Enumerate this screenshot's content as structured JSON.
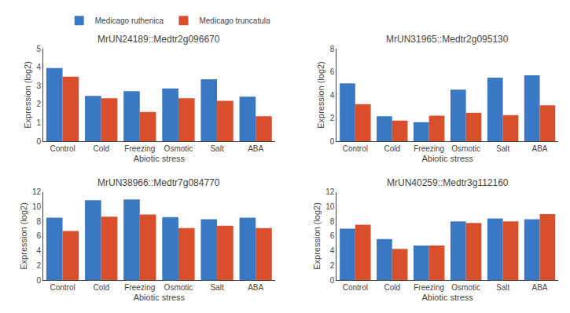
{
  "chart_data": [
    {
      "type": "bar",
      "title": "MrUN24189::Medtr2g096670",
      "xlabel": "Abiotic stress",
      "ylabel": "Expression (log2)",
      "categories": [
        "Control",
        "Cold",
        "Freezing",
        "Osmotic",
        "Salt",
        "ABA"
      ],
      "series": [
        {
          "name": "Medicago ruthenica",
          "color": "#3B78C3",
          "values": [
            3.95,
            2.45,
            2.7,
            2.85,
            3.35,
            2.4
          ]
        },
        {
          "name": "Medicago truncatula",
          "color": "#D94F2B",
          "values": [
            3.48,
            2.32,
            1.58,
            2.32,
            2.18,
            1.35
          ]
        }
      ],
      "ylim": [
        0,
        5
      ],
      "yticks": [
        0,
        1,
        2,
        3,
        4,
        5
      ],
      "grid": false,
      "legend": "upper right"
    },
    {
      "type": "bar",
      "title": "MrUN31965::Medtr2g095130",
      "xlabel": "Abiotic stress",
      "ylabel": "Expression (log2)",
      "categories": [
        "Control",
        "Cold",
        "Freezing",
        "Osmotic",
        "Salt",
        "ABA"
      ],
      "series": [
        {
          "name": "Medicago ruthenica",
          "color": "#3B78C3",
          "values": [
            5.0,
            2.15,
            1.65,
            4.45,
            5.5,
            5.7
          ]
        },
        {
          "name": "Medicago truncatula",
          "color": "#D94F2B",
          "values": [
            3.2,
            1.78,
            2.2,
            2.45,
            2.25,
            3.1
          ]
        }
      ],
      "ylim": [
        0,
        8
      ],
      "yticks": [
        0,
        2,
        4,
        6,
        8
      ],
      "grid": false
    },
    {
      "type": "bar",
      "title": "MrUN38966::Medtr7g084770",
      "xlabel": "Abiotic stress",
      "ylabel": "Expression (log2)",
      "categories": [
        "Control",
        "Cold",
        "Freezing",
        "Osmotic",
        "Salt",
        "ABA"
      ],
      "series": [
        {
          "name": "Medicago ruthenica",
          "color": "#3B78C3",
          "values": [
            8.5,
            10.9,
            11.0,
            8.6,
            8.3,
            8.5
          ]
        },
        {
          "name": "Medicago truncatula",
          "color": "#D94F2B",
          "values": [
            6.7,
            8.65,
            8.95,
            7.1,
            7.4,
            7.1
          ]
        }
      ],
      "ylim": [
        0,
        12
      ],
      "yticks": [
        0,
        2,
        4,
        6,
        8,
        10,
        12
      ],
      "grid": false
    },
    {
      "type": "bar",
      "title": "MrUN40259::Medtr3g112160",
      "xlabel": "Abiotic stress",
      "ylabel": "Expression (log2)",
      "categories": [
        "Control",
        "Cold",
        "Freezing",
        "Osmotic",
        "Salt",
        "ABA"
      ],
      "series": [
        {
          "name": "Medicago ruthenica",
          "color": "#3B78C3",
          "values": [
            7.0,
            5.6,
            4.7,
            8.0,
            8.4,
            8.3
          ]
        },
        {
          "name": "Medicago truncatula",
          "color": "#D94F2B",
          "values": [
            7.55,
            4.25,
            4.7,
            7.8,
            8.0,
            9.0
          ]
        }
      ],
      "ylim": [
        0,
        12
      ],
      "yticks": [
        0,
        2,
        4,
        6,
        8,
        10,
        12
      ],
      "grid": false
    }
  ]
}
